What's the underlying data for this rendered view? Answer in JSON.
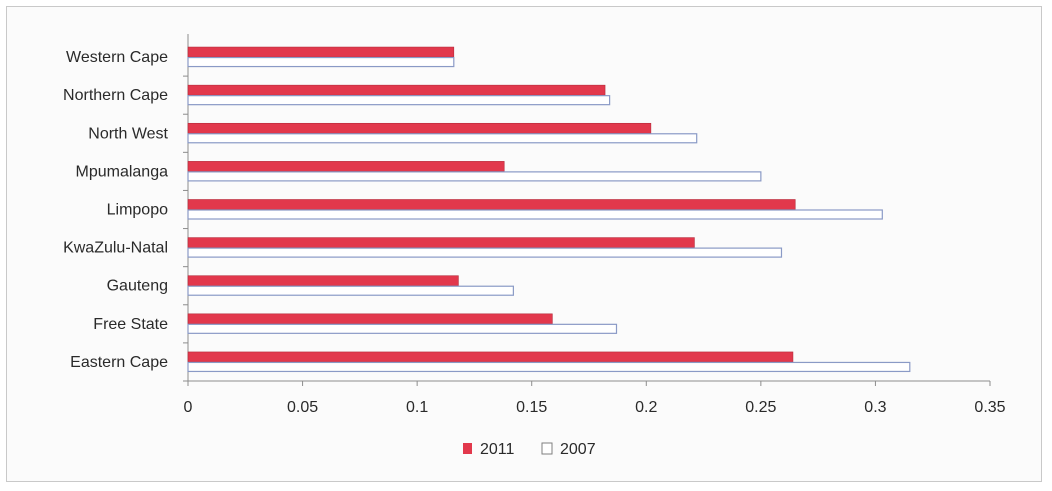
{
  "chart_data": {
    "type": "bar",
    "orientation": "horizontal",
    "categories": [
      "Eastern Cape",
      "Free State",
      "Gauteng",
      "KwaZulu-Natal",
      "Limpopo",
      "Mpumalanga",
      "North West",
      "Northern Cape",
      "Western Cape"
    ],
    "series": [
      {
        "name": "2011",
        "values": [
          0.264,
          0.159,
          0.118,
          0.221,
          0.265,
          0.138,
          0.202,
          0.182,
          0.116
        ],
        "color": "#e2384c",
        "style": "filled"
      },
      {
        "name": "2007",
        "values": [
          0.315,
          0.187,
          0.142,
          0.259,
          0.303,
          0.25,
          0.222,
          0.184,
          0.116
        ],
        "color": "#8a9ac6",
        "style": "outline"
      }
    ],
    "xlim": [
      0,
      0.35
    ],
    "xticks": [
      "0",
      "0.05",
      "0.1",
      "0.15",
      "0.2",
      "0.25",
      "0.3",
      "0.35"
    ],
    "title": "",
    "xlabel": "",
    "ylabel": "",
    "grid": false,
    "legend_position": "bottom"
  }
}
